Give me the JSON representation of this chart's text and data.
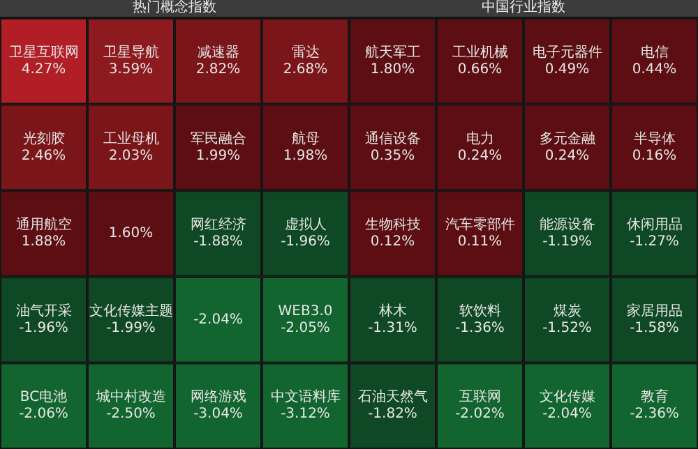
{
  "chart_data": [
    {
      "type": "other",
      "title": "热门概念指数",
      "categories": [
        "卫星互联网",
        "卫星导航",
        "减速器",
        "雷达",
        "光刻胶",
        "工业母机",
        "军民融合",
        "航母",
        "通用航空",
        null,
        "网红经济",
        "虚拟人",
        "油气开采",
        "文化传媒主题",
        null,
        "WEB3.0",
        "BC电池",
        "城中村改造",
        "网络游戏",
        "中文语料库"
      ],
      "values": [
        4.27,
        3.59,
        2.82,
        2.68,
        2.46,
        2.03,
        1.99,
        1.98,
        1.88,
        1.6,
        -1.88,
        -1.96,
        -1.96,
        -1.99,
        -2.04,
        -2.05,
        -2.06,
        -2.5,
        -3.04,
        -3.12
      ],
      "value_labels": [
        "4.27%",
        "3.59%",
        "2.82%",
        "2.68%",
        "2.46%",
        "2.03%",
        "1.99%",
        "1.98%",
        "1.88%",
        "1.60%",
        "-1.88%",
        "-1.96%",
        "-1.96%",
        "-1.99%",
        "-2.04%",
        "-2.05%",
        "-2.06%",
        "-2.50%",
        "-3.04%",
        "-3.12%"
      ]
    },
    {
      "type": "other",
      "title": "中国行业指数",
      "categories": [
        "航天军工",
        "工业机械",
        "电子元器件",
        "电信",
        "通信设备",
        "电力",
        "多元金融",
        "半导体",
        "生物科技",
        "汽车零部件",
        "能源设备",
        "休闲用品",
        "林木",
        "软饮料",
        "煤炭",
        "家居用品",
        "石油天然气",
        "互联网",
        "文化传媒",
        "教育"
      ],
      "values": [
        1.8,
        0.66,
        0.49,
        0.44,
        0.35,
        0.24,
        0.24,
        0.16,
        0.12,
        0.11,
        -1.19,
        -1.27,
        -1.31,
        -1.36,
        -1.52,
        -1.58,
        -1.82,
        -2.02,
        -2.04,
        -2.36
      ],
      "value_labels": [
        "1.80%",
        "0.66%",
        "0.49%",
        "0.44%",
        "0.35%",
        "0.24%",
        "0.24%",
        "0.16%",
        "0.12%",
        "0.11%",
        "-1.19%",
        "-1.27%",
        "-1.31%",
        "-1.36%",
        "-1.52%",
        "-1.58%",
        "-1.82%",
        "-2.02%",
        "-2.04%",
        "-2.36%"
      ]
    }
  ]
}
